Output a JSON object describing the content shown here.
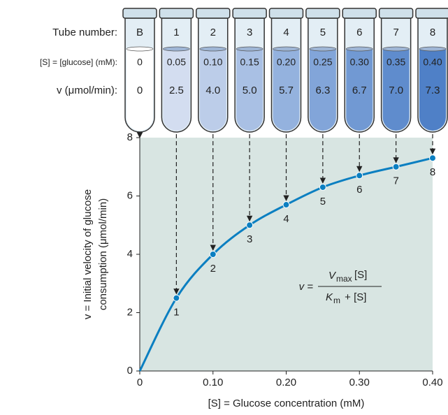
{
  "tubes": {
    "row_labels": [
      "Tube number:",
      "[S] = [glucose] (mM):",
      "v (μmol/min):"
    ],
    "items": [
      {
        "number": "B",
        "conc": "0",
        "velocity": "0"
      },
      {
        "number": "1",
        "conc": "0.05",
        "velocity": "2.5"
      },
      {
        "number": "2",
        "conc": "0.10",
        "velocity": "4.0"
      },
      {
        "number": "3",
        "conc": "0.15",
        "velocity": "5.0"
      },
      {
        "number": "4",
        "conc": "0.20",
        "velocity": "5.7"
      },
      {
        "number": "5",
        "conc": "0.25",
        "velocity": "6.3"
      },
      {
        "number": "6",
        "conc": "0.30",
        "velocity": "6.7"
      },
      {
        "number": "7",
        "conc": "0.35",
        "velocity": "7.0"
      },
      {
        "number": "8",
        "conc": "0.40",
        "velocity": "7.3"
      }
    ]
  },
  "chart_data": {
    "type": "line",
    "x": [
      0,
      0.05,
      0.1,
      0.15,
      0.2,
      0.25,
      0.3,
      0.35,
      0.4
    ],
    "values": [
      0,
      2.5,
      4.0,
      5.0,
      5.7,
      6.3,
      6.7,
      7.0,
      7.3
    ],
    "point_labels": [
      null,
      "1",
      "2",
      "3",
      "4",
      "5",
      "6",
      "7",
      "8"
    ],
    "color": "#0b7fc1",
    "xlim": [
      0,
      0.4
    ],
    "ylim": [
      0,
      8
    ],
    "xticks": [
      0,
      {
        "value": 0.1,
        "label": "0.10"
      },
      {
        "value": 0.2,
        "label": "0.20"
      },
      {
        "value": 0.3,
        "label": "0.30"
      },
      {
        "value": 0.4,
        "label": "0.40"
      }
    ],
    "yticks": [
      0,
      2,
      4,
      6,
      8
    ],
    "x_label": "[S] = Glucose concentration (mM)",
    "y_label": [
      "v = Initial velocity of glucose",
      "consumption (μmol/min)"
    ],
    "equation": {
      "lhs": "v =",
      "num_v": "V",
      "num_sub": "max",
      "num_s": "[S]",
      "den_k": "K",
      "den_sub": "m",
      "den_rest": " + [S]"
    }
  }
}
